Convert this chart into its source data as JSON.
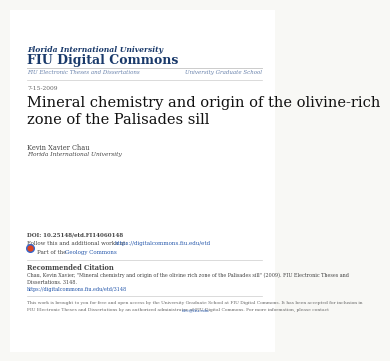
{
  "bg_color": "#f8f8f5",
  "header_line1": "Florida International University",
  "header_line2": "FIU Digital Commons",
  "header_color": "#1a3a6b",
  "nav_left": "FIU Electronic Theses and Dissertations",
  "nav_right": "University Graduate School",
  "nav_color": "#6680aa",
  "date": "7-15-2009",
  "date_color": "#666666",
  "title": "Mineral chemistry and origin of the olivine-rich\nzone of the Palisades sill",
  "title_color": "#111111",
  "author": "Kevin Xavier Chau",
  "author_institution": "Florida International University",
  "author_color": "#444444",
  "doi_text": "DOI: 10.25148/etd.FI14060148",
  "follow_prefix": "Follow this and additional works at: ",
  "follow_link": "https://digitalcommons.fiu.edu/etd",
  "part_prefix": "Part of the ",
  "part_link": "Geology Commons",
  "link_color": "#2255aa",
  "text_color": "#444444",
  "rec_title": "Recommended Citation",
  "rec_body1": "Chau, Kevin Xavier, \"Mineral chemistry and origin of the olivine rich zone of the Palisades sill\" (2009). FIU Electronic Theses and",
  "rec_body2": "Dissertations. 3148.",
  "rec_link": "https://digitalcommons.fiu.edu/etd/3148",
  "footer1": "This work is brought to you for free and open access by the University Graduate School at FIU Digital Commons. It has been accepted for inclusion in",
  "footer2": "FIU Electronic Theses and Dissertations by an authorized administrator of FIU Digital Commons. For more information, please contact ",
  "footer_link": "dcc@fiu.edu",
  "footer_color": "#666666",
  "line_color": "#cccccc"
}
